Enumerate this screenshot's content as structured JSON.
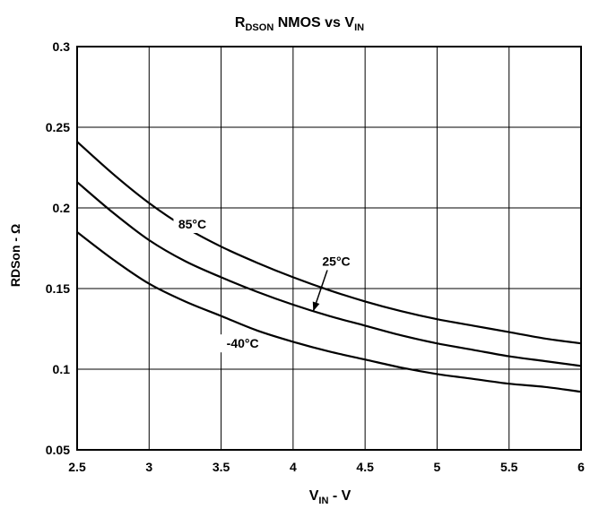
{
  "chart_data": {
    "type": "line",
    "title": {
      "main": "R",
      "sub": "DSON",
      "rest": " NMOS vs V",
      "sub2": "IN"
    },
    "xlabel": {
      "main": "V",
      "sub": "IN",
      "rest": " - V"
    },
    "ylabel": "RDSon - Ω",
    "xlim": [
      2.5,
      6
    ],
    "ylim": [
      0.05,
      0.3
    ],
    "xticks": [
      2.5,
      3,
      3.5,
      4,
      4.5,
      5,
      5.5,
      6
    ],
    "xtick_labels": [
      "2.5",
      "3",
      "3.5",
      "4",
      "4.5",
      "5",
      "5.5",
      "6"
    ],
    "yticks": [
      0.05,
      0.1,
      0.15,
      0.2,
      0.25,
      0.3
    ],
    "ytick_labels": [
      "0.05",
      "0.1",
      "0.15",
      "0.2",
      "0.25",
      "0.3"
    ],
    "grid": true,
    "series": [
      {
        "name": "85°C",
        "x": [
          2.5,
          2.75,
          3,
          3.25,
          3.5,
          3.75,
          4,
          4.25,
          4.5,
          4.75,
          5,
          5.25,
          5.5,
          5.75,
          6
        ],
        "values": [
          0.241,
          0.221,
          0.203,
          0.188,
          0.176,
          0.166,
          0.157,
          0.149,
          0.142,
          0.136,
          0.131,
          0.127,
          0.123,
          0.119,
          0.116
        ]
      },
      {
        "name": "25°C",
        "x": [
          2.5,
          2.75,
          3,
          3.25,
          3.5,
          3.75,
          4,
          4.25,
          4.5,
          4.75,
          5,
          5.25,
          5.5,
          5.75,
          6
        ],
        "values": [
          0.216,
          0.197,
          0.18,
          0.167,
          0.157,
          0.148,
          0.14,
          0.133,
          0.127,
          0.121,
          0.116,
          0.112,
          0.108,
          0.105,
          0.102
        ]
      },
      {
        "name": "-40°C",
        "x": [
          2.5,
          2.75,
          3,
          3.25,
          3.5,
          3.75,
          4,
          4.25,
          4.5,
          4.75,
          5,
          5.25,
          5.5,
          5.75,
          6
        ],
        "values": [
          0.185,
          0.168,
          0.153,
          0.142,
          0.133,
          0.124,
          0.117,
          0.111,
          0.106,
          0.101,
          0.097,
          0.094,
          0.091,
          0.089,
          0.086
        ]
      }
    ],
    "annotations": [
      {
        "text": "85°C",
        "series": "85°C",
        "x": 3.3,
        "y": 0.19
      },
      {
        "text": "25°C",
        "series": "25°C",
        "x": 4.3,
        "y": 0.167,
        "arrow_to": [
          4.14,
          0.136
        ]
      },
      {
        "text": "-40°C",
        "series": "-40°C",
        "x": 3.65,
        "y": 0.116
      }
    ]
  }
}
